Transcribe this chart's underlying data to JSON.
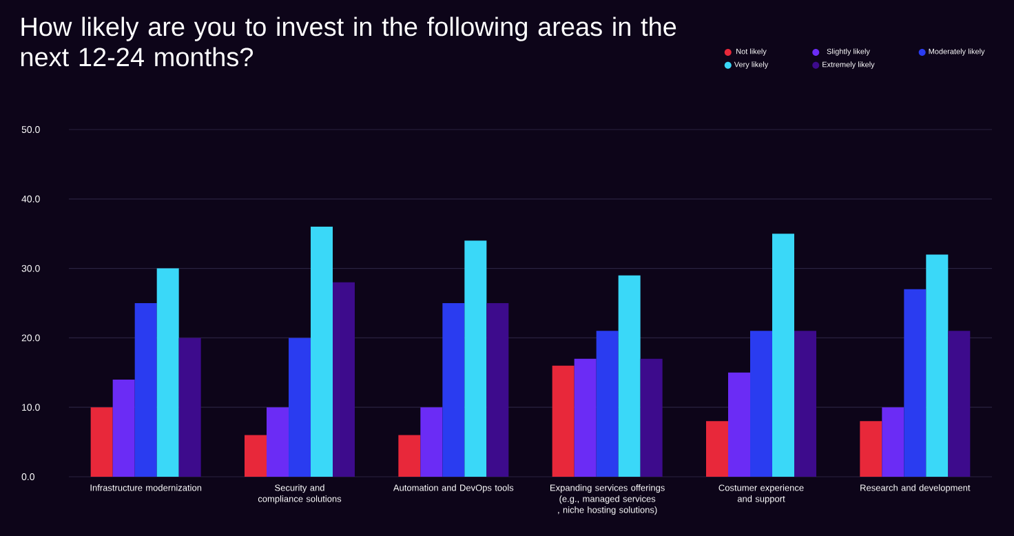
{
  "chart_data": {
    "type": "bar",
    "title": "How likely are you to invest in the following areas in the next 12-24 months?",
    "categories": [
      "Infrastructure modernization",
      "Security and compliance solutions",
      "Automation and DevOps tools",
      "Expanding services offerings (e.g., managed services , niche hosting solutions)",
      "Costumer experience and support",
      "Research and development"
    ],
    "series": [
      {
        "name": "Not likely",
        "color": "#e8283a",
        "values": [
          10,
          6,
          6,
          16,
          8,
          8
        ]
      },
      {
        "name": "Slightly likely",
        "color": "#6b2cf5",
        "values": [
          14,
          10,
          10,
          17,
          15,
          10
        ]
      },
      {
        "name": "Moderately likely",
        "color": "#2a3cf0",
        "values": [
          25,
          20,
          25,
          21,
          21,
          27
        ]
      },
      {
        "name": "Very likely",
        "color": "#3ad8f8",
        "values": [
          30,
          36,
          34,
          29,
          35,
          32
        ]
      },
      {
        "name": "Extremely likely",
        "color": "#3d0b8c",
        "values": [
          20,
          28,
          25,
          17,
          21,
          21
        ]
      }
    ],
    "ylim": [
      0,
      50
    ],
    "yticks": [
      {
        "value": 0,
        "label": "0.0"
      },
      {
        "value": 10,
        "label": "10.0"
      },
      {
        "value": 20,
        "label": "20.0"
      },
      {
        "value": 30,
        "label": "30.0"
      },
      {
        "value": 40,
        "label": "40.0"
      },
      {
        "value": 50,
        "label": "50.0"
      }
    ],
    "grid": "y",
    "legend": "top right"
  }
}
